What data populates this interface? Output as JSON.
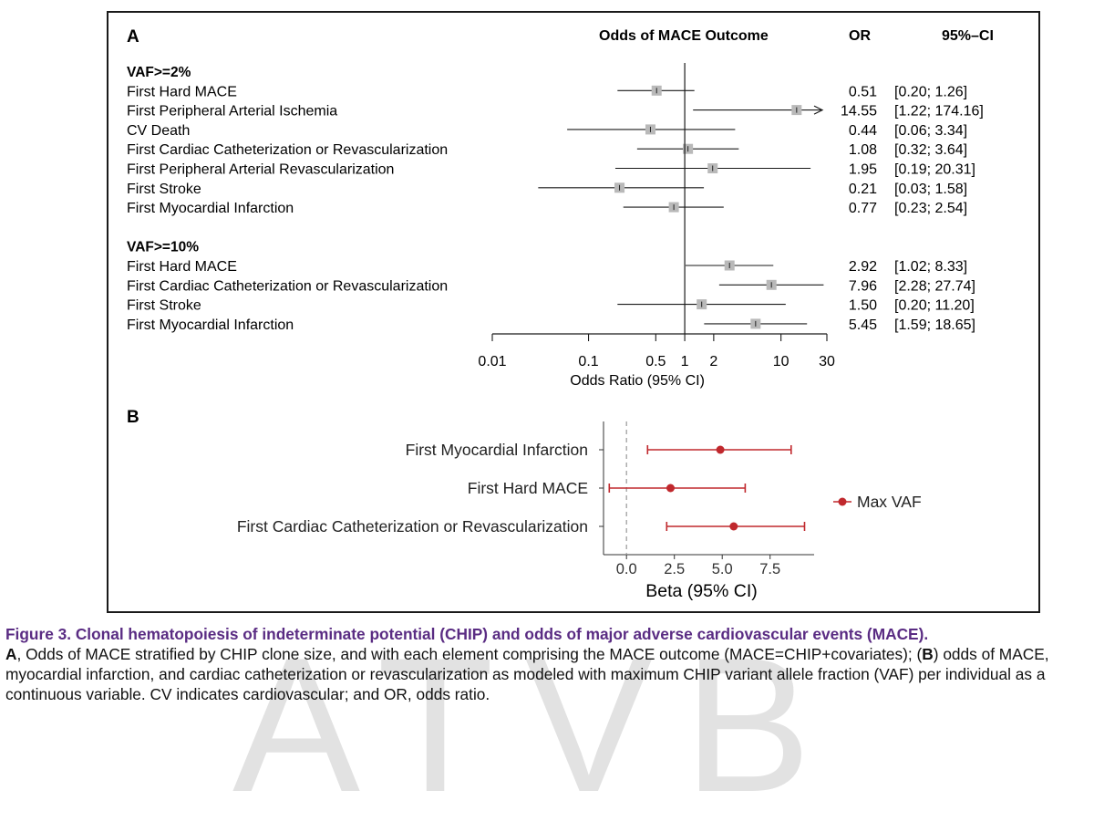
{
  "watermark": "ATVB",
  "chart_data": [
    {
      "type": "forest",
      "panel_label": "A",
      "column_headers": {
        "title": "Odds of MACE Outcome",
        "or": "OR",
        "ci": "95%–CI"
      },
      "x_scale": "log",
      "xlim": [
        0.01,
        30
      ],
      "x_ticks": [
        "0.01",
        "0.1",
        "0.5",
        "1",
        "2",
        "10",
        "30"
      ],
      "xlabel": "Odds Ratio (95% CI)",
      "reference_line": 1,
      "groups": [
        {
          "name": "VAF>=2%",
          "rows": [
            {
              "label": "First Hard MACE",
              "or": 0.51,
              "lo": 0.2,
              "hi": 1.26,
              "or_text": "0.51",
              "ci_text": "[0.20;  1.26]"
            },
            {
              "label": "First Peripheral Arterial Ischemia",
              "or": 14.55,
              "lo": 1.22,
              "hi": 174.16,
              "arrow": true,
              "or_text": "14.55",
              "ci_text": "[1.22; 174.16]"
            },
            {
              "label": "CV Death",
              "or": 0.44,
              "lo": 0.06,
              "hi": 3.34,
              "or_text": "0.44",
              "ci_text": "[0.06;  3.34]"
            },
            {
              "label": "First Cardiac Catheterization or Revascularization",
              "or": 1.08,
              "lo": 0.32,
              "hi": 3.64,
              "or_text": "1.08",
              "ci_text": "[0.32;  3.64]"
            },
            {
              "label": "First Peripheral Arterial Revascularization",
              "or": 1.95,
              "lo": 0.19,
              "hi": 20.31,
              "or_text": "1.95",
              "ci_text": "[0.19;  20.31]"
            },
            {
              "label": "First Stroke",
              "or": 0.21,
              "lo": 0.03,
              "hi": 1.58,
              "or_text": "0.21",
              "ci_text": "[0.03;  1.58]"
            },
            {
              "label": "First Myocardial Infarction",
              "or": 0.77,
              "lo": 0.23,
              "hi": 2.54,
              "or_text": "0.77",
              "ci_text": "[0.23;  2.54]"
            }
          ]
        },
        {
          "name": "VAF>=10%",
          "rows": [
            {
              "label": "First Hard MACE",
              "or": 2.92,
              "lo": 1.02,
              "hi": 8.33,
              "or_text": "2.92",
              "ci_text": "[1.02;  8.33]"
            },
            {
              "label": "First Cardiac Catheterization or Revascularization",
              "or": 7.96,
              "lo": 2.28,
              "hi": 27.74,
              "or_text": "7.96",
              "ci_text": "[2.28;  27.74]"
            },
            {
              "label": "First Stroke",
              "or": 1.5,
              "lo": 0.2,
              "hi": 11.2,
              "or_text": "1.50",
              "ci_text": "[0.20;  11.20]"
            },
            {
              "label": "First Myocardial Infarction",
              "or": 5.45,
              "lo": 1.59,
              "hi": 18.65,
              "or_text": "5.45",
              "ci_text": "[1.59;  18.65]"
            }
          ]
        }
      ],
      "colors": {
        "box": "#b9b9b9",
        "line": "#1a1a1a"
      }
    },
    {
      "type": "forest",
      "panel_label": "B",
      "xlim": [
        -1.2,
        9.8
      ],
      "x_ticks": [
        0.0,
        2.5,
        5.0,
        7.5
      ],
      "x_tick_labels": [
        "0.0",
        "2.5",
        "5.0",
        "7.5"
      ],
      "xlabel": "Beta (95% CI)",
      "reference_line": 0,
      "legend": {
        "label": "Max VAF",
        "position": "right"
      },
      "rows": [
        {
          "label": "First Myocardial Infarction",
          "beta": 4.9,
          "lo": 1.1,
          "hi": 8.6
        },
        {
          "label": "First Hard MACE",
          "beta": 2.3,
          "lo": -0.9,
          "hi": 6.2
        },
        {
          "label": "First Cardiac Catheterization or Revascularization",
          "beta": 5.6,
          "lo": 2.1,
          "hi": 9.3
        }
      ],
      "colors": {
        "series": "#c0282d",
        "reference": "#a0a0a0"
      }
    }
  ],
  "caption": {
    "title": "Figure 3. Clonal hematopoiesis of indeterminate potential (CHIP) and odds of major adverse cardiovascular events (MACE).",
    "label_a": "A",
    "text_a": ", Odds of MACE stratified by CHIP clone size, and with each element comprising the MACE outcome (MACE=CHIP+covariates); (",
    "label_b": "B",
    "text_b": ") odds of MACE, myocardial infarction, and cardiac catheterization or revascularization as modeled with maximum CHIP variant allele fraction (VAF) per individual as a continuous variable. CV indicates cardiovascular; and OR, odds ratio."
  }
}
